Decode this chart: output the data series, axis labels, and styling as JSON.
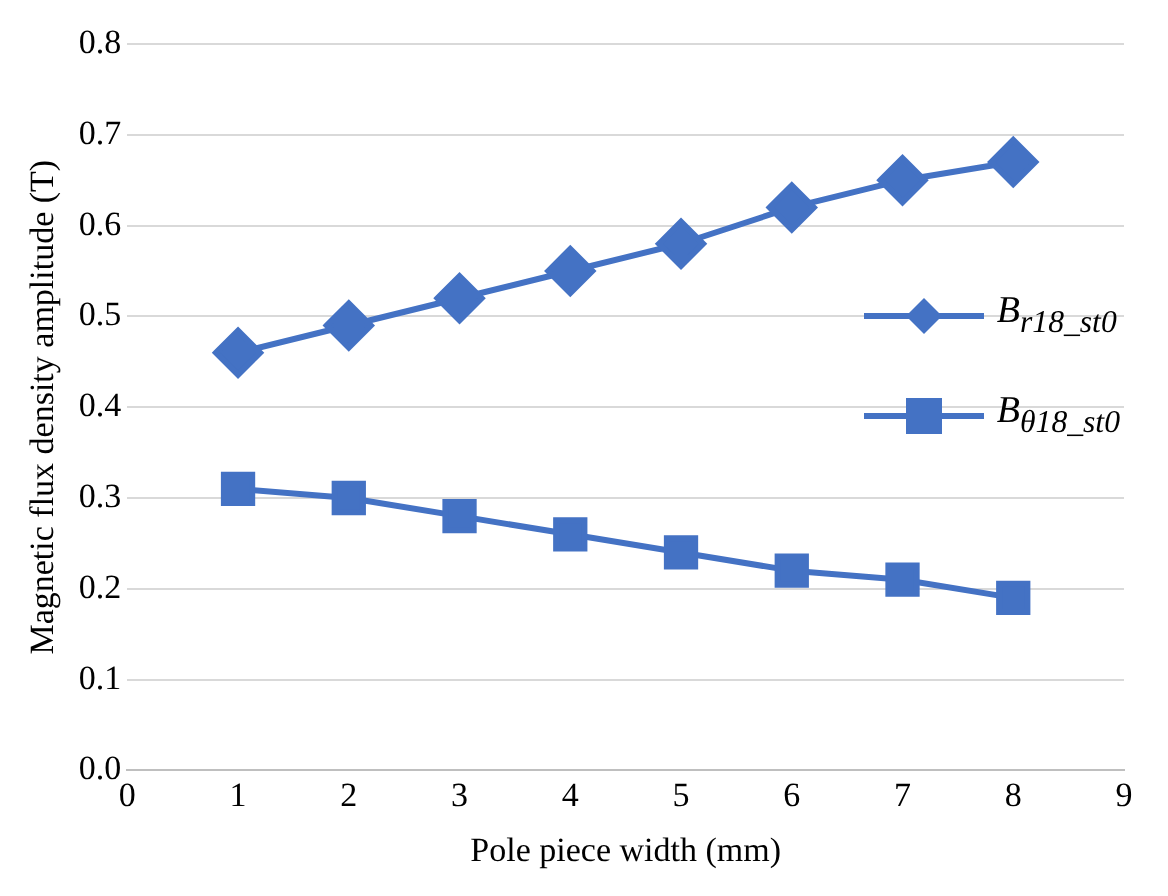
{
  "chart_data": {
    "type": "line",
    "xlabel": "Pole piece width (mm)",
    "ylabel": "Magnetic flux density amplitude (T)",
    "x": [
      1,
      2,
      3,
      4,
      5,
      6,
      7,
      8
    ],
    "series": [
      {
        "name": "B$_{r18_st0}$",
        "color": "#4472c4",
        "marker": "diamond",
        "values": [
          0.46,
          0.49,
          0.52,
          0.55,
          0.58,
          0.62,
          0.65,
          0.67
        ]
      },
      {
        "name": "B$_{θ18_st0}$",
        "color": "#4472c4",
        "marker": "square",
        "values": [
          0.31,
          0.3,
          0.28,
          0.26,
          0.24,
          0.22,
          0.21,
          0.19
        ]
      }
    ],
    "xlim": [
      0,
      9
    ],
    "xticks": [
      0,
      1,
      2,
      3,
      4,
      5,
      6,
      7,
      8,
      9
    ],
    "ylim": [
      0,
      0.8
    ],
    "yticks": [
      {
        "value": 0,
        "label": "0.0"
      },
      {
        "value": 0.1,
        "label": "0.1"
      },
      {
        "value": 0.2,
        "label": "0.2"
      },
      {
        "value": 0.3,
        "label": "0.3"
      },
      {
        "value": 0.4,
        "label": "0.4"
      },
      {
        "value": 0.5,
        "label": "0.5"
      },
      {
        "value": 0.6,
        "label": "0.6"
      },
      {
        "value": 0.7,
        "label": "0.7"
      },
      {
        "value": 0.8,
        "label": "0.8"
      }
    ],
    "grid": "y",
    "legend": "right",
    "line_style": "solid"
  }
}
